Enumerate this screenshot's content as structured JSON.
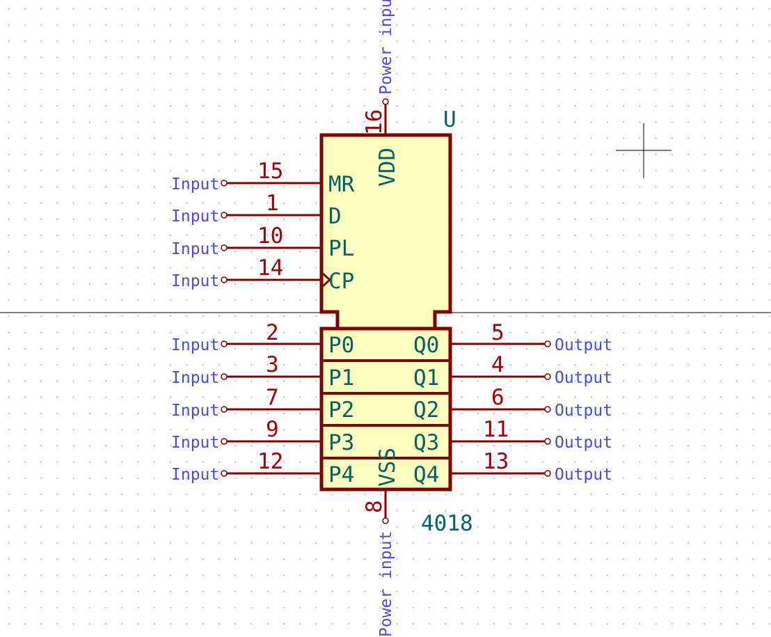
{
  "component": {
    "reference": "U",
    "value": "4018"
  },
  "labels": {
    "input": "Input",
    "output": "Output",
    "power_input": "Power input"
  },
  "colors": {
    "pin_line": "#840000",
    "body_fill": "#ffffc0",
    "pin_number": "#a20000",
    "pin_name": "#006464",
    "electrical_type": "#4a4ae0"
  },
  "pins": {
    "vdd": {
      "name": "VDD",
      "number": "16",
      "type": "Power input"
    },
    "vss": {
      "name": "VSS",
      "number": "8",
      "type": "Power input"
    },
    "mr": {
      "name": "MR",
      "number": "15",
      "type": "Input"
    },
    "d": {
      "name": "D",
      "number": "1",
      "type": "Input"
    },
    "pl": {
      "name": "PL",
      "number": "10",
      "type": "Input"
    },
    "cp": {
      "name": "CP",
      "number": "14",
      "type": "Input"
    },
    "p0": {
      "name": "P0",
      "number": "2",
      "type": "Input"
    },
    "p1": {
      "name": "P1",
      "number": "3",
      "type": "Input"
    },
    "p2": {
      "name": "P2",
      "number": "7",
      "type": "Input"
    },
    "p3": {
      "name": "P3",
      "number": "9",
      "type": "Input"
    },
    "p4": {
      "name": "P4",
      "number": "12",
      "type": "Input"
    },
    "q0": {
      "name": "Q0",
      "number": "5",
      "type": "Output"
    },
    "q1": {
      "name": "Q1",
      "number": "4",
      "type": "Output"
    },
    "q2": {
      "name": "Q2",
      "number": "6",
      "type": "Output"
    },
    "q3": {
      "name": "Q3",
      "number": "11",
      "type": "Output"
    },
    "q4": {
      "name": "Q4",
      "number": "13",
      "type": "Output"
    }
  }
}
